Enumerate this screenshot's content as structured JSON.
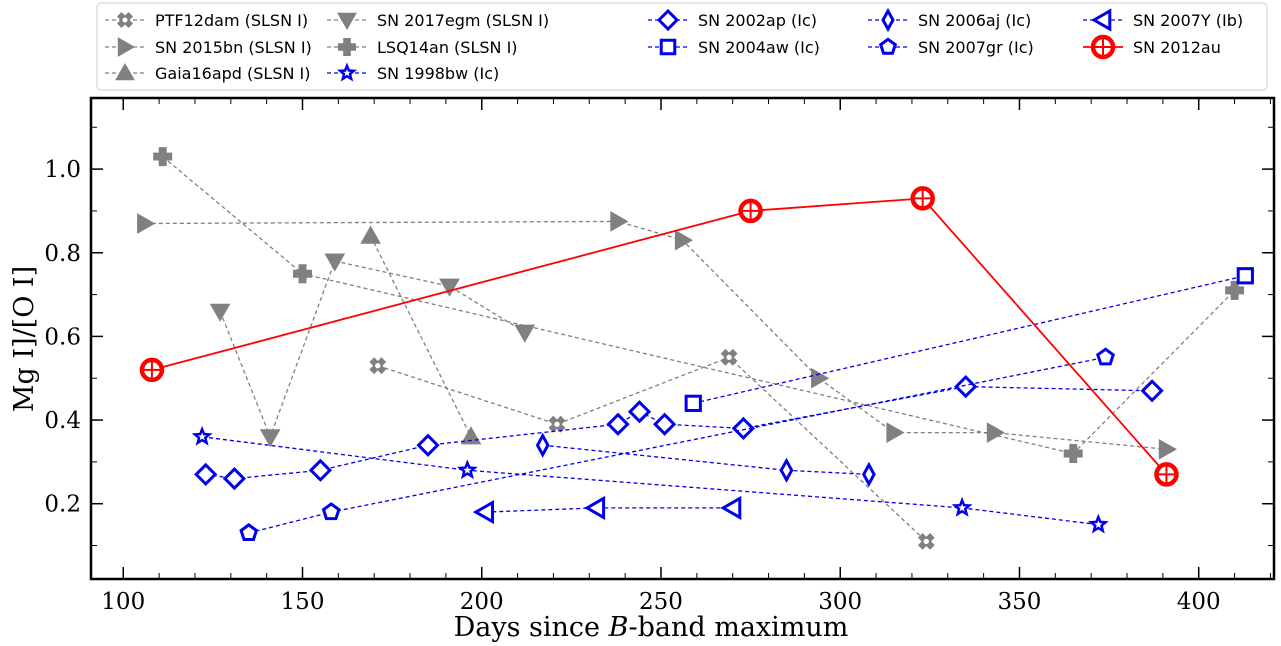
{
  "chart_data": {
    "type": "line",
    "xlabel_pre": "Days since ",
    "xlabel_italic": "B",
    "xlabel_post": "-band maximum",
    "ylabel": "Mg I]/[O I]",
    "xlim": [
      91,
      1421
    ],
    "ylim": [
      0.02,
      1.17
    ],
    "xlim_data": [
      91,
      421
    ],
    "xticks": [
      100,
      150,
      200,
      250,
      300,
      350,
      400
    ],
    "yticks": [
      0.2,
      0.4,
      0.6,
      0.8,
      1.0
    ],
    "xtick_labels": [
      "100",
      "150",
      "200",
      "250",
      "300",
      "350",
      "400"
    ],
    "ytick_labels": [
      "0.2",
      "0.4",
      "0.6",
      "0.8",
      "1.0"
    ],
    "grid": false,
    "legend_position": "top",
    "series": [
      {
        "name": "PTF12dam (SLSN I)",
        "color": "#808080",
        "marker": "x-circle",
        "dashed": true,
        "x": [
          171,
          221,
          269,
          324
        ],
        "y": [
          0.53,
          0.39,
          0.55,
          0.11
        ]
      },
      {
        "name": "SN 2015bn (SLSN I)",
        "color": "#808080",
        "marker": "triangle-right",
        "dashed": true,
        "x": [
          106,
          238,
          256,
          294,
          315,
          343,
          391
        ],
        "y": [
          0.87,
          0.875,
          0.83,
          0.5,
          0.37,
          0.37,
          0.33
        ]
      },
      {
        "name": "Gaia16apd (SLSN I)",
        "color": "#808080",
        "marker": "triangle-up",
        "dashed": true,
        "x": [
          169,
          197
        ],
        "y": [
          0.84,
          0.36
        ]
      },
      {
        "name": "SN 2017egm (SLSN I)",
        "color": "#808080",
        "marker": "triangle-down",
        "dashed": true,
        "x": [
          127,
          141,
          159,
          191,
          212
        ],
        "y": [
          0.66,
          0.36,
          0.78,
          0.72,
          0.61
        ]
      },
      {
        "name": "LSQ14an (SLSN I)",
        "color": "#808080",
        "marker": "plus",
        "dashed": true,
        "x": [
          111,
          150,
          365,
          410
        ],
        "y": [
          1.03,
          0.75,
          0.32,
          0.71
        ]
      },
      {
        "name": "SN 1998bw (Ic)",
        "color": "#0000ee",
        "marker": "star",
        "dashed": true,
        "x": [
          122,
          196,
          334,
          372
        ],
        "y": [
          0.36,
          0.28,
          0.19,
          0.15
        ]
      },
      {
        "name": "SN 2002ap (Ic)",
        "color": "#0000ee",
        "marker": "diamond",
        "dashed": true,
        "x": [
          123,
          131,
          155,
          185,
          238,
          244,
          251,
          273,
          335,
          387
        ],
        "y": [
          0.27,
          0.26,
          0.28,
          0.34,
          0.39,
          0.42,
          0.39,
          0.38,
          0.48,
          0.47
        ]
      },
      {
        "name": "SN 2004aw (Ic)",
        "color": "#0000ee",
        "marker": "square",
        "dashed": true,
        "x": [
          259,
          413
        ],
        "y": [
          0.44,
          0.745
        ]
      },
      {
        "name": "SN 2006aj (Ic)",
        "color": "#0000ee",
        "marker": "thin-diamond",
        "dashed": true,
        "x": [
          217,
          285,
          308
        ],
        "y": [
          0.34,
          0.28,
          0.27
        ]
      },
      {
        "name": "SN 2007gr (Ic)",
        "color": "#0000ee",
        "marker": "pentagon",
        "dashed": true,
        "x": [
          135,
          158,
          374
        ],
        "y": [
          0.13,
          0.18,
          0.55
        ]
      },
      {
        "name": "SN 2007Y (Ib)",
        "color": "#0000ee",
        "marker": "triangle-left",
        "dashed": true,
        "x": [
          201,
          232,
          270
        ],
        "y": [
          0.18,
          0.19,
          0.19
        ]
      },
      {
        "name": "SN 2012au",
        "color": "#ff0000",
        "marker": "circle-plus",
        "dashed": false,
        "x": [
          108,
          275,
          323,
          391
        ],
        "y": [
          0.52,
          0.9,
          0.93,
          0.27
        ]
      }
    ]
  }
}
